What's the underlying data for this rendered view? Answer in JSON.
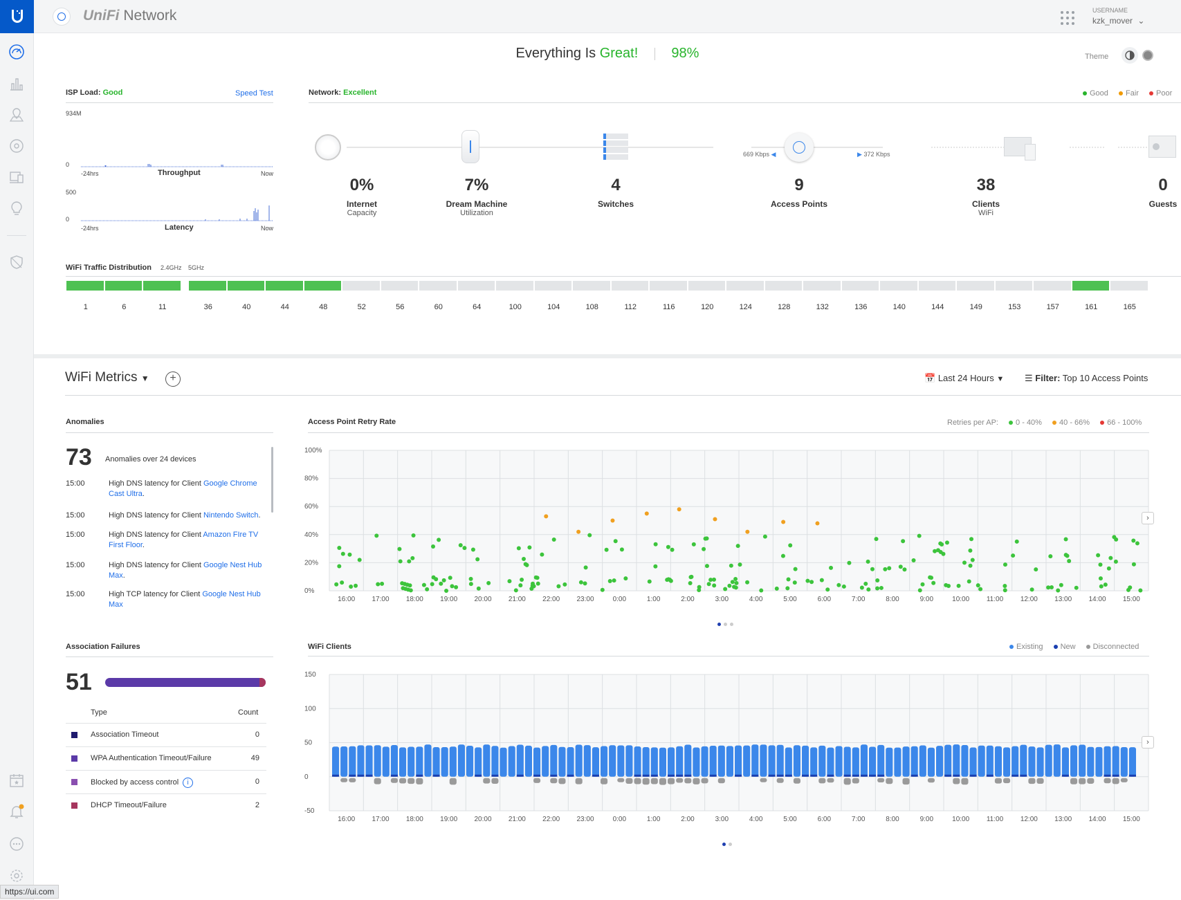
{
  "app": {
    "logo_letter": "U",
    "brand_unifi": "UniFi",
    "brand_network": "Network",
    "username_label": "USERNAME",
    "username": "kzk_mover",
    "status_url": "https://ui.com"
  },
  "sidebar": {
    "icons": [
      "dashboard-icon",
      "statistics-icon",
      "map-icon",
      "devices-icon",
      "clients-icon",
      "insights-icon",
      "threat-shield-icon",
      "events-calendar-icon",
      "alerts-bell-icon",
      "chat-icon",
      "settings-icon"
    ]
  },
  "health": {
    "prefix": "Everything Is ",
    "state": "Great!",
    "score": "98%",
    "theme_label": "Theme"
  },
  "isp": {
    "label": "ISP Load: ",
    "status": "Good",
    "speed_test": "Speed Test",
    "throughput_max": "934M",
    "throughput_min": "0",
    "throughput_title": "Throughput",
    "latency_max": "500",
    "latency_min": "0",
    "latency_title": "Latency",
    "left": "-24hrs",
    "right": "Now"
  },
  "network": {
    "label": "Network: ",
    "status": "Excellent",
    "legend": [
      "Good",
      "Fair",
      "Poor"
    ],
    "legend_colors": [
      "#28b42c",
      "#f09a00",
      "#e53935"
    ],
    "down_rate": "669 Kbps",
    "up_rate": "372 Kbps",
    "stats": [
      {
        "value": "0%",
        "label": "Internet",
        "sub": "Capacity"
      },
      {
        "value": "7%",
        "label": "Dream Machine",
        "sub": "Utilization"
      },
      {
        "value": "4",
        "label": "Switches",
        "sub": ""
      },
      {
        "value": "9",
        "label": "Access Points",
        "sub": ""
      },
      {
        "value": "38",
        "label": "Clients",
        "sub": "WiFi"
      },
      {
        "value": "0",
        "label": "Guests",
        "sub": ""
      }
    ]
  },
  "wifi_dist": {
    "title": "WiFi Traffic Distribution",
    "band24": "2.4GHz",
    "band5": "5GHz",
    "ch24": [
      {
        "ch": "1",
        "active": true
      },
      {
        "ch": "6",
        "active": true
      },
      {
        "ch": "11",
        "active": true
      }
    ],
    "ch5": [
      {
        "ch": "36",
        "active": true
      },
      {
        "ch": "40",
        "active": true
      },
      {
        "ch": "44",
        "active": true
      },
      {
        "ch": "48",
        "active": true
      },
      {
        "ch": "52",
        "active": false
      },
      {
        "ch": "56",
        "active": false
      },
      {
        "ch": "60",
        "active": false
      },
      {
        "ch": "64",
        "active": false
      },
      {
        "ch": "100",
        "active": false
      },
      {
        "ch": "104",
        "active": false
      },
      {
        "ch": "108",
        "active": false
      },
      {
        "ch": "112",
        "active": false
      },
      {
        "ch": "116",
        "active": false
      },
      {
        "ch": "120",
        "active": false
      },
      {
        "ch": "124",
        "active": false
      },
      {
        "ch": "128",
        "active": false
      },
      {
        "ch": "132",
        "active": false
      },
      {
        "ch": "136",
        "active": false
      },
      {
        "ch": "140",
        "active": false
      },
      {
        "ch": "144",
        "active": false
      },
      {
        "ch": "149",
        "active": false
      },
      {
        "ch": "153",
        "active": false
      },
      {
        "ch": "157",
        "active": false
      },
      {
        "ch": "161",
        "active": true
      },
      {
        "ch": "165",
        "active": false
      }
    ]
  },
  "metrics": {
    "title": "WiFi Metrics",
    "range": "Last 24 Hours",
    "filter_label": "Filter:",
    "filter_value": "Top 10 Access Points"
  },
  "anomalies": {
    "title": "Anomalies",
    "count": "73",
    "summary": "Anomalies over 24 devices",
    "items": [
      {
        "time": "15:00",
        "text": "High DNS latency for Client ",
        "link": "Google Chrome Cast Ultra",
        "end": "."
      },
      {
        "time": "15:00",
        "text": "High DNS latency for Client ",
        "link": "Nintendo Switch",
        "end": "."
      },
      {
        "time": "15:00",
        "text": "High DNS latency for Client ",
        "link": "Amazon FIre TV First Floor",
        "end": "."
      },
      {
        "time": "15:00",
        "text": "High DNS latency for Client ",
        "link": "Google Nest Hub Max",
        "end": "."
      },
      {
        "time": "15:00",
        "text": "High TCP latency for Client ",
        "link": "Google Nest Hub Max",
        "end": ""
      }
    ]
  },
  "assoc": {
    "title": "Association Failures",
    "count": "51",
    "col_type": "Type",
    "col_count": "Count",
    "rows": [
      {
        "type": "Association Timeout",
        "count": "0",
        "color": "#1f1a6e"
      },
      {
        "type": "WPA Authentication Timeout/Failure",
        "count": "49",
        "color": "#5b3aa8"
      },
      {
        "type": "Blocked by access control",
        "count": "0",
        "color": "#8a4fb0"
      },
      {
        "type": "DHCP Timeout/Failure",
        "count": "2",
        "color": "#a6365e"
      }
    ]
  },
  "chart_data": [
    {
      "type": "scatter",
      "title": "Access Point Retry Rate",
      "legend_title": "Retries per AP:",
      "legend": [
        "0 - 40%",
        "40 - 66%",
        "66 - 100%"
      ],
      "legend_colors": [
        "#3cc43c",
        "#f0a020",
        "#e53935"
      ],
      "yticks": [
        "100%",
        "80%",
        "60%",
        "40%",
        "20%",
        "0%"
      ],
      "ylim": [
        0,
        100
      ],
      "xticks": [
        "16:00",
        "17:00",
        "18:00",
        "19:00",
        "20:00",
        "21:00",
        "22:00",
        "23:00",
        "0:00",
        "1:00",
        "2:00",
        "3:00",
        "4:00",
        "5:00",
        "6:00",
        "7:00",
        "8:00",
        "9:00",
        "10:00",
        "11:00",
        "12:00",
        "13:00",
        "14:00",
        "15:00"
      ],
      "orange_points": [
        [
          5.85,
          53
        ],
        [
          6.8,
          42
        ],
        [
          7.8,
          50
        ],
        [
          8.8,
          55
        ],
        [
          9.75,
          58
        ],
        [
          10.8,
          51
        ],
        [
          11.75,
          42
        ],
        [
          12.8,
          49
        ],
        [
          13.8,
          48
        ]
      ]
    },
    {
      "type": "bar",
      "title": "WiFi Clients",
      "legend": [
        "Existing",
        "New",
        "Disconnected"
      ],
      "legend_colors": [
        "#3b87ea",
        "#1a3fb0",
        "#999999"
      ],
      "yticks": [
        "150",
        "100",
        "50",
        "0",
        "-50"
      ],
      "ylim": [
        -50,
        150
      ],
      "existing_approx": 45,
      "disconnected_approx": -8,
      "xticks": [
        "16:00",
        "17:00",
        "18:00",
        "19:00",
        "20:00",
        "21:00",
        "22:00",
        "23:00",
        "0:00",
        "1:00",
        "2:00",
        "3:00",
        "4:00",
        "5:00",
        "6:00",
        "7:00",
        "8:00",
        "9:00",
        "10:00",
        "11:00",
        "12:00",
        "13:00",
        "14:00",
        "15:00"
      ]
    }
  ]
}
